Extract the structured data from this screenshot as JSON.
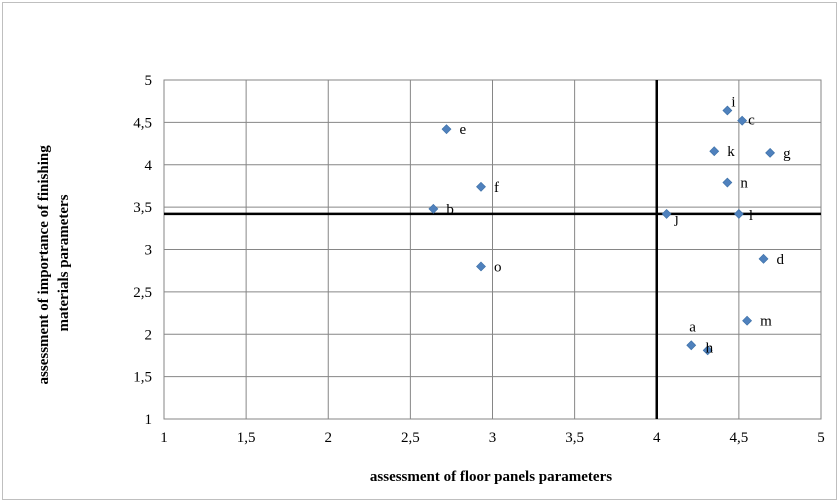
{
  "chart_data": {
    "type": "scatter",
    "xlabel": "assessment of floor panels parameters",
    "ylabel_lines": [
      "assessment of importance of finishing",
      "materials parameters"
    ],
    "xlim": [
      1,
      5
    ],
    "ylim": [
      1,
      5
    ],
    "x_ticks": [
      "1",
      "1,5",
      "2",
      "2,5",
      "3",
      "3,5",
      "4",
      "4,5",
      "5"
    ],
    "y_ticks": [
      "1",
      "1,5",
      "2",
      "2,5",
      "3",
      "3,5",
      "4",
      "4,5",
      "5"
    ],
    "grid": true,
    "marker_color": "#4f81bd",
    "reference_lines": {
      "x": 4.0,
      "y": 3.42
    },
    "points": [
      {
        "label": "a",
        "x": 4.21,
        "y": 1.87
      },
      {
        "label": "b",
        "x": 2.64,
        "y": 3.48
      },
      {
        "label": "c",
        "x": 4.52,
        "y": 4.52
      },
      {
        "label": "d",
        "x": 4.65,
        "y": 2.89
      },
      {
        "label": "e",
        "x": 2.72,
        "y": 4.42
      },
      {
        "label": "f",
        "x": 2.93,
        "y": 3.74
      },
      {
        "label": "g",
        "x": 4.69,
        "y": 4.14
      },
      {
        "label": "h",
        "x": 4.31,
        "y": 1.81
      },
      {
        "label": "i",
        "x": 4.43,
        "y": 4.64
      },
      {
        "label": "j",
        "x": 4.06,
        "y": 3.42
      },
      {
        "label": "k",
        "x": 4.35,
        "y": 4.16
      },
      {
        "label": "l",
        "x": 4.5,
        "y": 3.42
      },
      {
        "label": "m",
        "x": 4.55,
        "y": 2.16
      },
      {
        "label": "n",
        "x": 4.43,
        "y": 3.79
      },
      {
        "label": "o",
        "x": 2.93,
        "y": 2.8
      }
    ]
  }
}
